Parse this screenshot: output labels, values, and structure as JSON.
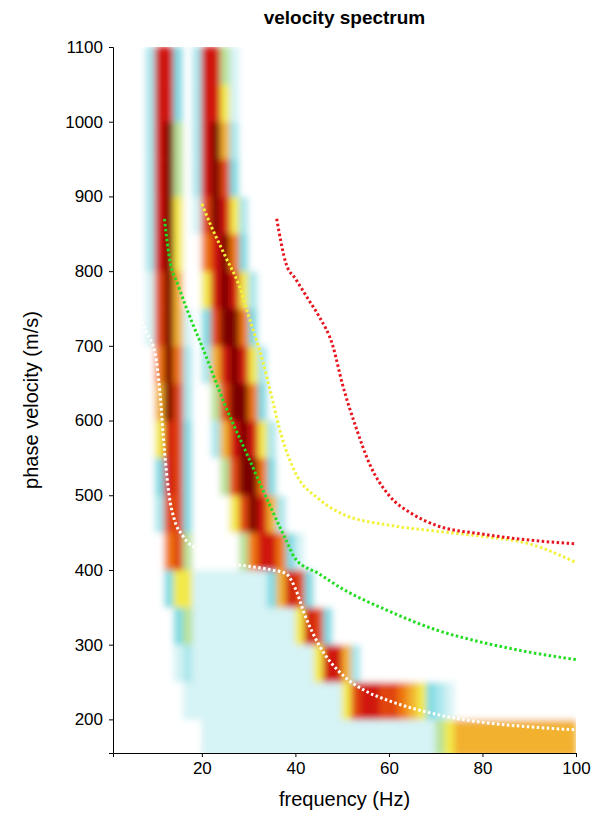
{
  "chart_data": {
    "type": "heatmap",
    "title": "velocity spectrum",
    "x_label": "frequency (Hz)",
    "y_label": "phase velocity (m/s)",
    "xlim": [
      1,
      100
    ],
    "ylim": [
      155,
      1100
    ],
    "xticks": [
      20,
      40,
      60,
      80,
      100
    ],
    "yticks": [
      200,
      300,
      400,
      500,
      600,
      700,
      800,
      900,
      1000,
      1100
    ],
    "grid": false,
    "heatmap": {
      "zlim": [
        0,
        1
      ],
      "x_edges": [
        0,
        2,
        4,
        6,
        8,
        10,
        12,
        14,
        16,
        18,
        20,
        22,
        24,
        26,
        28,
        30,
        32,
        34,
        36,
        38,
        40,
        42,
        44,
        46,
        48,
        50,
        52,
        54,
        56,
        58,
        60,
        62,
        64,
        66,
        68,
        70,
        72,
        74,
        76,
        78,
        80,
        82,
        84,
        86,
        88,
        90,
        92,
        94,
        96,
        98,
        100
      ],
      "y_edges": [
        150,
        200,
        250,
        300,
        350,
        400,
        450,
        500,
        550,
        600,
        650,
        700,
        750,
        800,
        850,
        900,
        950,
        1000,
        1050,
        1100
      ],
      "values": [
        [
          0,
          0,
          0,
          0,
          0,
          0,
          0,
          0,
          0,
          0,
          0.1,
          0.1,
          0.1,
          0.1,
          0.1,
          0.1,
          0.1,
          0.1,
          0.1,
          0.1,
          0.1,
          0.1,
          0.1,
          0.1,
          0.1,
          0.1,
          0.1,
          0.1,
          0.1,
          0.1,
          0.1,
          0.1,
          0.1,
          0.1,
          0.1,
          0.4,
          0.5,
          0.6,
          0.6,
          0.6,
          0.6,
          0.6,
          0.6,
          0.6,
          0.6,
          0.6,
          0.6,
          0.6,
          0.6,
          0.6
        ],
        [
          0,
          0,
          0,
          0,
          0,
          0,
          0,
          0,
          0.1,
          0.1,
          0.1,
          0.1,
          0.1,
          0.1,
          0.1,
          0.1,
          0.1,
          0.1,
          0.1,
          0.1,
          0.1,
          0.1,
          0.1,
          0.1,
          0.1,
          0.5,
          0.8,
          0.9,
          0.9,
          0.8,
          0.8,
          0.7,
          0.6,
          0.5,
          0.3,
          0.2,
          0.1,
          0,
          0,
          0,
          0,
          0,
          0,
          0,
          0,
          0,
          0,
          0,
          0,
          0
        ],
        [
          0,
          0,
          0,
          0,
          0,
          0,
          0,
          0.1,
          0.2,
          0.1,
          0.1,
          0.1,
          0.1,
          0.1,
          0.1,
          0.1,
          0.1,
          0.1,
          0.1,
          0.1,
          0.1,
          0.1,
          0.5,
          0.9,
          0.9,
          0.6,
          0.2,
          0,
          0,
          0,
          0,
          0,
          0,
          0,
          0,
          0,
          0,
          0,
          0,
          0,
          0,
          0,
          0,
          0,
          0,
          0,
          0,
          0,
          0,
          0
        ],
        [
          0,
          0,
          0,
          0,
          0,
          0,
          0,
          0.3,
          0.4,
          0.1,
          0.1,
          0.1,
          0.1,
          0.1,
          0.1,
          0.1,
          0.1,
          0.1,
          0.1,
          0.1,
          0.5,
          0.9,
          0.8,
          0.3,
          0,
          0,
          0,
          0,
          0,
          0,
          0,
          0,
          0,
          0,
          0,
          0,
          0,
          0,
          0,
          0,
          0,
          0,
          0,
          0,
          0,
          0,
          0,
          0,
          0,
          0
        ],
        [
          0,
          0,
          0,
          0,
          0,
          0,
          0.3,
          0.5,
          0.5,
          0.1,
          0.1,
          0.1,
          0.1,
          0.1,
          0.1,
          0.1,
          0.1,
          0.3,
          0.6,
          0.9,
          0.8,
          0.3,
          0,
          0,
          0,
          0,
          0,
          0,
          0,
          0,
          0,
          0,
          0,
          0,
          0,
          0,
          0,
          0,
          0,
          0,
          0,
          0,
          0,
          0,
          0,
          0,
          0,
          0,
          0,
          0
        ],
        [
          0,
          0,
          0,
          0,
          0,
          0,
          0.7,
          0.8,
          0.4,
          0,
          0,
          0,
          0,
          0,
          0.4,
          0.7,
          0.9,
          0.9,
          0.7,
          0.3,
          0.1,
          0,
          0,
          0,
          0,
          0,
          0,
          0,
          0,
          0,
          0,
          0,
          0,
          0,
          0,
          0,
          0,
          0,
          0,
          0,
          0,
          0,
          0,
          0,
          0,
          0,
          0,
          0,
          0,
          0
        ],
        [
          0,
          0,
          0,
          0,
          0,
          0.2,
          0.8,
          0.8,
          0.3,
          0,
          0,
          0,
          0,
          0.5,
          0.8,
          1,
          0.9,
          0.6,
          0.2,
          0,
          0,
          0,
          0,
          0,
          0,
          0,
          0,
          0,
          0,
          0,
          0,
          0,
          0,
          0,
          0,
          0,
          0,
          0,
          0,
          0,
          0,
          0,
          0,
          0,
          0,
          0,
          0,
          0,
          0,
          0
        ],
        [
          0,
          0,
          0,
          0,
          0,
          0.3,
          0.9,
          0.8,
          0.3,
          0,
          0,
          0,
          0.4,
          0.8,
          1,
          1,
          0.7,
          0.3,
          0,
          0,
          0,
          0,
          0,
          0,
          0,
          0,
          0,
          0,
          0,
          0,
          0,
          0,
          0,
          0,
          0,
          0,
          0,
          0,
          0,
          0,
          0,
          0,
          0,
          0,
          0,
          0,
          0,
          0,
          0,
          0
        ],
        [
          0,
          0,
          0,
          0,
          0,
          0.5,
          0.9,
          0.8,
          0.3,
          0,
          0,
          0.2,
          0.6,
          0.9,
          1,
          0.9,
          0.5,
          0.2,
          0,
          0,
          0,
          0,
          0,
          0,
          0,
          0,
          0,
          0,
          0,
          0,
          0,
          0,
          0,
          0,
          0,
          0,
          0,
          0,
          0,
          0,
          0,
          0,
          0,
          0,
          0,
          0,
          0,
          0,
          0,
          0
        ],
        [
          0,
          0,
          0,
          0,
          0,
          0.6,
          1,
          0.8,
          0.2,
          0,
          0,
          0.4,
          0.8,
          1,
          1,
          0.7,
          0.3,
          0,
          0,
          0,
          0,
          0,
          0,
          0,
          0,
          0,
          0,
          0,
          0,
          0,
          0,
          0,
          0,
          0,
          0,
          0,
          0,
          0,
          0,
          0,
          0,
          0,
          0,
          0,
          0,
          0,
          0,
          0,
          0,
          0
        ],
        [
          0,
          0,
          0,
          0,
          0,
          0.7,
          1,
          0.7,
          0.2,
          0,
          0.2,
          0.6,
          0.9,
          1,
          0.9,
          0.5,
          0.2,
          0,
          0,
          0,
          0,
          0,
          0,
          0,
          0,
          0,
          0,
          0,
          0,
          0,
          0,
          0,
          0,
          0,
          0,
          0,
          0,
          0,
          0,
          0,
          0,
          0,
          0,
          0,
          0,
          0,
          0,
          0,
          0,
          0
        ],
        [
          0,
          0,
          0,
          0,
          0.1,
          0.8,
          1,
          0.6,
          0.1,
          0,
          0.3,
          0.8,
          1,
          1,
          0.7,
          0.3,
          0,
          0,
          0,
          0,
          0,
          0,
          0,
          0,
          0,
          0,
          0,
          0,
          0,
          0,
          0,
          0,
          0,
          0,
          0,
          0,
          0,
          0,
          0,
          0,
          0,
          0,
          0,
          0,
          0,
          0,
          0,
          0,
          0,
          0
        ],
        [
          0,
          0,
          0,
          0,
          0.1,
          0.8,
          1,
          0.6,
          0,
          0,
          0.5,
          0.9,
          1,
          0.9,
          0.5,
          0.2,
          0,
          0,
          0,
          0,
          0,
          0,
          0,
          0,
          0,
          0,
          0,
          0,
          0,
          0,
          0,
          0,
          0,
          0,
          0,
          0,
          0,
          0,
          0,
          0,
          0,
          0,
          0,
          0,
          0,
          0,
          0,
          0,
          0,
          0
        ],
        [
          0,
          0,
          0,
          0,
          0.2,
          0.9,
          1,
          0.5,
          0,
          0,
          0.7,
          0.9,
          1,
          0.7,
          0.3,
          0,
          0,
          0,
          0,
          0,
          0,
          0,
          0,
          0,
          0,
          0,
          0,
          0,
          0,
          0,
          0,
          0,
          0,
          0,
          0,
          0,
          0,
          0,
          0,
          0,
          0,
          0,
          0,
          0,
          0,
          0,
          0,
          0,
          0,
          0
        ],
        [
          0,
          0,
          0,
          0,
          0.2,
          0.9,
          1,
          0.5,
          0,
          0.1,
          0.8,
          1,
          0.9,
          0.5,
          0.2,
          0,
          0,
          0,
          0,
          0,
          0,
          0,
          0,
          0,
          0,
          0,
          0,
          0,
          0,
          0,
          0,
          0,
          0,
          0,
          0,
          0,
          0,
          0,
          0,
          0,
          0,
          0,
          0,
          0,
          0,
          0,
          0,
          0,
          0,
          0
        ],
        [
          0,
          0,
          0,
          0,
          0.2,
          0.9,
          1,
          0.4,
          0,
          0.2,
          0.9,
          1,
          0.8,
          0.3,
          0,
          0,
          0,
          0,
          0,
          0,
          0,
          0,
          0,
          0,
          0,
          0,
          0,
          0,
          0,
          0,
          0,
          0,
          0,
          0,
          0,
          0,
          0,
          0,
          0,
          0,
          0,
          0,
          0,
          0,
          0,
          0,
          0,
          0,
          0,
          0
        ],
        [
          0,
          0,
          0,
          0,
          0.2,
          0.9,
          1,
          0.4,
          0,
          0.2,
          0.9,
          1,
          0.6,
          0.2,
          0,
          0,
          0,
          0,
          0,
          0,
          0,
          0,
          0,
          0,
          0,
          0,
          0,
          0,
          0,
          0,
          0,
          0,
          0,
          0,
          0,
          0,
          0,
          0,
          0,
          0,
          0,
          0,
          0,
          0,
          0,
          0,
          0,
          0,
          0,
          0
        ],
        [
          0,
          0,
          0,
          0,
          0.2,
          0.9,
          0.9,
          0.3,
          0,
          0.2,
          0.9,
          0.9,
          0.5,
          0.1,
          0,
          0,
          0,
          0,
          0,
          0,
          0,
          0,
          0,
          0,
          0,
          0,
          0,
          0,
          0,
          0,
          0,
          0,
          0,
          0,
          0,
          0,
          0,
          0,
          0,
          0,
          0,
          0,
          0,
          0,
          0,
          0,
          0,
          0,
          0,
          0
        ],
        [
          0,
          0,
          0,
          0,
          0.2,
          0.9,
          0.9,
          0.3,
          0,
          0.2,
          0.9,
          0.9,
          0.4,
          0.1,
          0,
          0,
          0,
          0,
          0,
          0,
          0,
          0,
          0,
          0,
          0,
          0,
          0,
          0,
          0,
          0,
          0,
          0,
          0,
          0,
          0,
          0,
          0,
          0,
          0,
          0,
          0,
          0,
          0,
          0,
          0,
          0,
          0,
          0,
          0,
          0
        ]
      ]
    },
    "series": [
      {
        "type": "line",
        "color": "#ffffff",
        "line_style": "dotted",
        "x": [
          1,
          5,
          8,
          10,
          11,
          12,
          13,
          14,
          16,
          20,
          25,
          30,
          35,
          38,
          40,
          42,
          45,
          50,
          55,
          60,
          70,
          80,
          90,
          100
        ],
        "values": [
          810,
          770,
          720,
          690,
          640,
          560,
          500,
          470,
          445,
          425,
          410,
          405,
          400,
          395,
          375,
          340,
          300,
          260,
          238,
          225,
          207,
          196,
          190,
          186
        ]
      },
      {
        "type": "line",
        "color": "#22dd22",
        "line_style": "dotted",
        "x": [
          12,
          13,
          15,
          18,
          20,
          25,
          30,
          35,
          38,
          40,
          45,
          50,
          60,
          70,
          80,
          90,
          100
        ],
        "values": [
          870,
          820,
          780,
          730,
          700,
          620,
          550,
          480,
          440,
          415,
          395,
          375,
          345,
          320,
          303,
          290,
          280
        ]
      },
      {
        "type": "line",
        "color": "#f2f23a",
        "line_style": "dotted",
        "x": [
          20,
          22,
          25,
          28,
          30,
          33,
          35,
          37,
          40,
          45,
          50,
          60,
          70,
          80,
          90,
          100
        ],
        "values": [
          890,
          860,
          820,
          780,
          740,
          680,
          630,
          580,
          530,
          495,
          475,
          460,
          452,
          445,
          435,
          410
        ]
      },
      {
        "type": "line",
        "color": "#e8141e",
        "line_style": "dotted",
        "x": [
          36,
          38,
          40,
          43,
          45,
          48,
          50,
          53,
          56,
          60,
          65,
          70,
          80,
          90,
          100
        ],
        "values": [
          870,
          810,
          790,
          760,
          740,
          700,
          650,
          590,
          540,
          500,
          475,
          460,
          448,
          440,
          435
        ]
      }
    ]
  }
}
